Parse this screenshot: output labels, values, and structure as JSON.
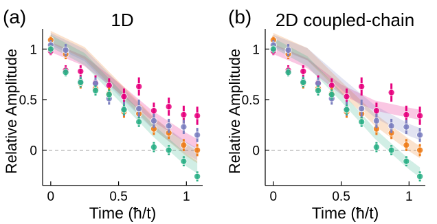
{
  "chart_data": [
    {
      "type": "scatter",
      "panel_label": "(a)",
      "title": "1D",
      "xlabel": "Time (ħ/t)",
      "ylabel": "Relative Amplitude",
      "xlim": [
        -0.06,
        1.12
      ],
      "ylim": [
        -0.35,
        1.2
      ],
      "x_ticks": [
        0,
        0.5,
        1
      ],
      "x_tick_labels": [
        "0",
        "0.5",
        "1"
      ],
      "y_ticks": [
        0,
        0.5,
        1
      ],
      "y_tick_labels": [
        "0",
        "0.5",
        "1"
      ],
      "reference_line": {
        "y": 0,
        "style": "dashed"
      },
      "series": [
        {
          "color": "#e6007e",
          "points": [
            {
              "x": 0.0,
              "y": 0.98,
              "err": 0.04
            },
            {
              "x": 0.11,
              "y": 0.79,
              "err": 0.05
            },
            {
              "x": 0.22,
              "y": 0.78,
              "err": 0.06
            },
            {
              "x": 0.33,
              "y": 0.67,
              "err": 0.07
            },
            {
              "x": 0.43,
              "y": 0.64,
              "err": 0.07
            },
            {
              "x": 0.54,
              "y": 0.53,
              "err": 0.08
            },
            {
              "x": 0.65,
              "y": 0.63,
              "err": 0.09
            },
            {
              "x": 0.76,
              "y": 0.39,
              "err": 0.08
            },
            {
              "x": 0.87,
              "y": 0.43,
              "err": 0.09
            },
            {
              "x": 0.98,
              "y": 0.35,
              "err": 0.09
            },
            {
              "x": 1.08,
              "y": 0.34,
              "err": 0.09
            }
          ],
          "fit": {
            "x": [
              0.0,
              0.25,
              0.5,
              0.75,
              1.0,
              1.08
            ],
            "y": [
              1.02,
              0.88,
              0.62,
              0.34,
              0.12,
              0.06
            ],
            "band": 0.05
          }
        },
        {
          "color": "#ee7d1a",
          "points": [
            {
              "x": 0.0,
              "y": 1.09,
              "err": 0.04
            },
            {
              "x": 0.11,
              "y": 0.95,
              "err": 0.05
            },
            {
              "x": 0.22,
              "y": 0.66,
              "err": 0.05
            },
            {
              "x": 0.33,
              "y": 0.61,
              "err": 0.06
            },
            {
              "x": 0.43,
              "y": 0.56,
              "err": 0.06
            },
            {
              "x": 0.54,
              "y": 0.38,
              "err": 0.06
            },
            {
              "x": 0.65,
              "y": 0.36,
              "err": 0.06
            },
            {
              "x": 0.76,
              "y": 0.21,
              "err": 0.06
            },
            {
              "x": 0.87,
              "y": 0.17,
              "err": 0.06
            },
            {
              "x": 0.98,
              "y": 0.05,
              "err": 0.06
            },
            {
              "x": 1.08,
              "y": 0.0,
              "err": 0.06
            }
          ],
          "fit": {
            "x": [
              0.0,
              0.25,
              0.5,
              0.75,
              1.0,
              1.08
            ],
            "y": [
              1.12,
              0.96,
              0.62,
              0.28,
              0.0,
              -0.07
            ],
            "band": 0.06
          }
        },
        {
          "color": "#7b7fbf",
          "points": [
            {
              "x": 0.0,
              "y": 1.04,
              "err": 0.05
            },
            {
              "x": 0.11,
              "y": 0.99,
              "err": 0.06
            },
            {
              "x": 0.22,
              "y": 0.68,
              "err": 0.05
            },
            {
              "x": 0.33,
              "y": 0.66,
              "err": 0.06
            },
            {
              "x": 0.43,
              "y": 0.51,
              "err": 0.06
            },
            {
              "x": 0.54,
              "y": 0.41,
              "err": 0.07
            },
            {
              "x": 0.65,
              "y": 0.41,
              "err": 0.09
            },
            {
              "x": 0.76,
              "y": 0.29,
              "err": 0.07
            },
            {
              "x": 0.87,
              "y": 0.24,
              "err": 0.07
            },
            {
              "x": 0.98,
              "y": 0.23,
              "err": 0.07
            },
            {
              "x": 1.08,
              "y": 0.15,
              "err": 0.07
            }
          ],
          "fit": {
            "x": [
              0.0,
              0.25,
              0.5,
              0.75,
              1.0,
              1.08
            ],
            "y": [
              1.1,
              0.94,
              0.6,
              0.27,
              0.02,
              -0.04
            ],
            "band": 0.06
          }
        },
        {
          "color": "#2db087",
          "points": [
            {
              "x": 0.0,
              "y": 1.0,
              "err": 0.04
            },
            {
              "x": 0.11,
              "y": 0.77,
              "err": 0.04
            },
            {
              "x": 0.22,
              "y": 0.67,
              "err": 0.05
            },
            {
              "x": 0.33,
              "y": 0.59,
              "err": 0.05
            },
            {
              "x": 0.43,
              "y": 0.55,
              "err": 0.05
            },
            {
              "x": 0.54,
              "y": 0.4,
              "err": 0.05
            },
            {
              "x": 0.65,
              "y": 0.28,
              "err": 0.05
            },
            {
              "x": 0.76,
              "y": 0.03,
              "err": 0.05
            },
            {
              "x": 0.87,
              "y": 0.0,
              "err": 0.05
            },
            {
              "x": 0.98,
              "y": -0.11,
              "err": 0.05
            },
            {
              "x": 1.08,
              "y": -0.26,
              "err": 0.05
            }
          ],
          "fit": {
            "x": [
              0.0,
              0.25,
              0.5,
              0.75,
              1.0,
              1.08
            ],
            "y": [
              1.08,
              0.9,
              0.55,
              0.2,
              -0.1,
              -0.17
            ],
            "band": 0.06
          }
        }
      ]
    },
    {
      "type": "scatter",
      "panel_label": "(b)",
      "title": "2D coupled-chain",
      "xlabel": "Time (ħ/t)",
      "ylabel": "Relative Amplitude",
      "xlim": [
        -0.06,
        1.12
      ],
      "ylim": [
        -0.35,
        1.2
      ],
      "x_ticks": [
        0,
        0.5,
        1
      ],
      "x_tick_labels": [
        "0",
        "0.5",
        "1"
      ],
      "y_ticks": [
        0,
        0.5,
        1
      ],
      "y_tick_labels": [
        "0",
        "0.5",
        "1"
      ],
      "reference_line": {
        "y": 0,
        "style": "dashed"
      },
      "series": [
        {
          "color": "#e6007e",
          "points": [
            {
              "x": 0.0,
              "y": 0.98,
              "err": 0.04
            },
            {
              "x": 0.11,
              "y": 0.79,
              "err": 0.05
            },
            {
              "x": 0.22,
              "y": 0.78,
              "err": 0.06
            },
            {
              "x": 0.33,
              "y": 0.67,
              "err": 0.07
            },
            {
              "x": 0.43,
              "y": 0.64,
              "err": 0.07
            },
            {
              "x": 0.54,
              "y": 0.53,
              "err": 0.08
            },
            {
              "x": 0.65,
              "y": 0.63,
              "err": 0.09
            },
            {
              "x": 0.76,
              "y": 0.39,
              "err": 0.08
            },
            {
              "x": 0.87,
              "y": 0.57,
              "err": 0.09
            },
            {
              "x": 0.98,
              "y": 0.35,
              "err": 0.09
            },
            {
              "x": 1.08,
              "y": 0.34,
              "err": 0.09
            }
          ],
          "fit": {
            "x": [
              0.0,
              0.25,
              0.5,
              0.75,
              1.0,
              1.08
            ],
            "y": [
              1.0,
              0.86,
              0.6,
              0.44,
              0.37,
              0.35
            ],
            "band": 0.05
          }
        },
        {
          "color": "#ee7d1a",
          "points": [
            {
              "x": 0.0,
              "y": 1.09,
              "err": 0.04
            },
            {
              "x": 0.11,
              "y": 0.95,
              "err": 0.05
            },
            {
              "x": 0.22,
              "y": 0.66,
              "err": 0.05
            },
            {
              "x": 0.33,
              "y": 0.61,
              "err": 0.06
            },
            {
              "x": 0.43,
              "y": 0.56,
              "err": 0.06
            },
            {
              "x": 0.54,
              "y": 0.38,
              "err": 0.06
            },
            {
              "x": 0.65,
              "y": 0.36,
              "err": 0.06
            },
            {
              "x": 0.76,
              "y": 0.21,
              "err": 0.06
            },
            {
              "x": 0.87,
              "y": 0.17,
              "err": 0.06
            },
            {
              "x": 0.98,
              "y": 0.05,
              "err": 0.06
            },
            {
              "x": 1.08,
              "y": 0.0,
              "err": 0.06
            }
          ],
          "fit": {
            "x": [
              0.0,
              0.25,
              0.5,
              0.75,
              1.0,
              1.08
            ],
            "y": [
              1.1,
              0.95,
              0.62,
              0.3,
              0.05,
              -0.02
            ],
            "band": 0.06
          }
        },
        {
          "color": "#7b7fbf",
          "points": [
            {
              "x": 0.0,
              "y": 1.04,
              "err": 0.05
            },
            {
              "x": 0.11,
              "y": 0.99,
              "err": 0.06
            },
            {
              "x": 0.22,
              "y": 0.68,
              "err": 0.05
            },
            {
              "x": 0.33,
              "y": 0.66,
              "err": 0.06
            },
            {
              "x": 0.43,
              "y": 0.51,
              "err": 0.06
            },
            {
              "x": 0.54,
              "y": 0.41,
              "err": 0.07
            },
            {
              "x": 0.65,
              "y": 0.41,
              "err": 0.09
            },
            {
              "x": 0.76,
              "y": 0.29,
              "err": 0.07
            },
            {
              "x": 0.87,
              "y": 0.24,
              "err": 0.07
            },
            {
              "x": 0.98,
              "y": 0.23,
              "err": 0.07
            },
            {
              "x": 1.08,
              "y": 0.15,
              "err": 0.07
            }
          ],
          "fit": {
            "x": [
              0.0,
              0.25,
              0.5,
              0.75,
              1.0,
              1.08
            ],
            "y": [
              1.08,
              0.95,
              0.66,
              0.38,
              0.2,
              0.16
            ],
            "band": 0.06
          }
        },
        {
          "color": "#2db087",
          "points": [
            {
              "x": 0.0,
              "y": 1.0,
              "err": 0.04
            },
            {
              "x": 0.11,
              "y": 0.77,
              "err": 0.04
            },
            {
              "x": 0.22,
              "y": 0.67,
              "err": 0.05
            },
            {
              "x": 0.33,
              "y": 0.59,
              "err": 0.05
            },
            {
              "x": 0.43,
              "y": 0.55,
              "err": 0.05
            },
            {
              "x": 0.54,
              "y": 0.4,
              "err": 0.05
            },
            {
              "x": 0.65,
              "y": 0.28,
              "err": 0.05
            },
            {
              "x": 0.76,
              "y": 0.03,
              "err": 0.05
            },
            {
              "x": 0.87,
              "y": 0.0,
              "err": 0.05
            },
            {
              "x": 0.98,
              "y": -0.11,
              "err": 0.05
            },
            {
              "x": 1.08,
              "y": -0.26,
              "err": 0.05
            }
          ],
          "fit": {
            "x": [
              0.0,
              0.25,
              0.5,
              0.75,
              1.0,
              1.08
            ],
            "y": [
              1.06,
              0.88,
              0.53,
              0.16,
              -0.14,
              -0.22
            ],
            "band": 0.05
          }
        }
      ]
    }
  ]
}
